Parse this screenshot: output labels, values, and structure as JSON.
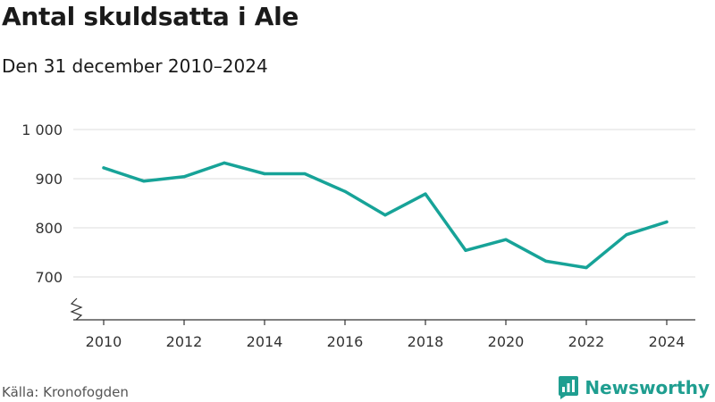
{
  "title": "Antal skuldsatta i Ale",
  "subtitle": "Den 31 december 2010–2024",
  "source": "Källa: Kronofogden",
  "brand": {
    "name": "Newsworthy",
    "icon": "newsworthy-logo-icon",
    "color": "#1f9e90"
  },
  "colors": {
    "line": "#17a398",
    "grid": "#dddddd",
    "axis": "#333333"
  },
  "chart_data": {
    "type": "line",
    "title": "Antal skuldsatta i Ale",
    "subtitle": "Den 31 december 2010–2024",
    "xlabel": "",
    "ylabel": "",
    "x": [
      2010,
      2011,
      2012,
      2013,
      2014,
      2015,
      2016,
      2017,
      2018,
      2019,
      2020,
      2021,
      2022,
      2023,
      2024
    ],
    "values": [
      922,
      895,
      904,
      932,
      910,
      910,
      874,
      826,
      869,
      754,
      776,
      732,
      719,
      786,
      812
    ],
    "x_ticks": [
      2010,
      2012,
      2014,
      2016,
      2018,
      2020,
      2022,
      2024
    ],
    "x_tick_labels": [
      "2010",
      "2012",
      "2014",
      "2016",
      "2018",
      "2020",
      "2022",
      "2024"
    ],
    "y_ticks": [
      700,
      800,
      900,
      1000
    ],
    "y_tick_labels": [
      "700",
      "800",
      "900",
      "1 000"
    ],
    "ylim": [
      700,
      1000
    ],
    "xlim": [
      2010,
      2024
    ],
    "y_axis_break": true,
    "grid": true,
    "legend": "none"
  }
}
